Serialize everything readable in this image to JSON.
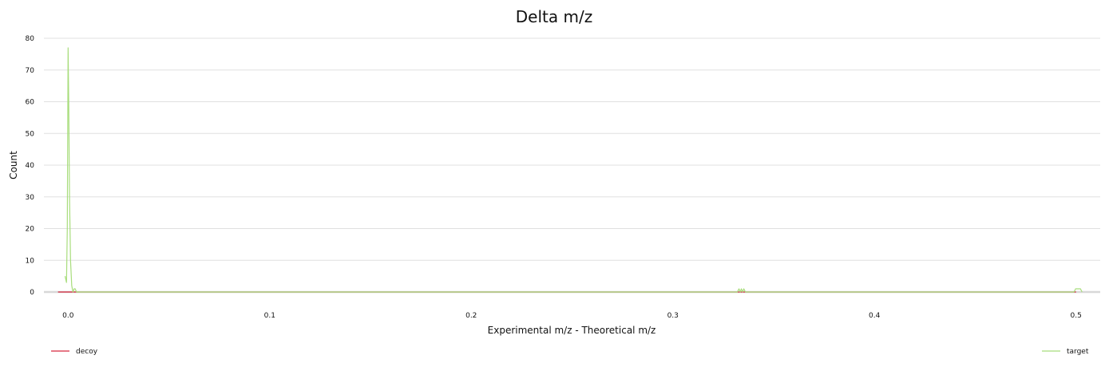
{
  "chart_data": {
    "type": "line",
    "title": "Delta m/z",
    "xlabel": "Experimental m/z - Theoretical m/z",
    "ylabel": "Count",
    "xlim": [
      -0.012,
      0.512
    ],
    "ylim": [
      0,
      80
    ],
    "x_ticks": [
      0.0,
      0.1,
      0.2,
      0.3,
      0.4,
      0.5
    ],
    "x_tick_labels": [
      "0.0",
      "0.1",
      "0.2",
      "0.3",
      "0.4",
      "0.5"
    ],
    "y_ticks": [
      0,
      10,
      20,
      30,
      40,
      50,
      60,
      70,
      80
    ],
    "y_tick_labels": [
      "0",
      "10",
      "20",
      "30",
      "40",
      "50",
      "60",
      "70",
      "80"
    ],
    "grid": "horizontal",
    "legend": [
      {
        "name": "decoy",
        "color": "#d6273d",
        "position": "bottom-left"
      },
      {
        "name": "target",
        "color": "#a8dd7c",
        "position": "bottom-right"
      }
    ],
    "series": [
      {
        "name": "decoy",
        "color": "#d6273d",
        "x": [
          -0.005,
          0.0,
          0.005,
          0.1,
          0.2,
          0.3,
          0.4,
          0.5
        ],
        "y": [
          0,
          0,
          0,
          0,
          0,
          0,
          0,
          0
        ]
      },
      {
        "name": "target",
        "color": "#a8dd7c",
        "x": [
          -0.0015,
          -0.0008,
          -0.0004,
          0.0,
          0.0003,
          0.0007,
          0.0012,
          0.0018,
          0.0024,
          0.003,
          0.0035,
          0.0042,
          0.005,
          0.332,
          0.3328,
          0.3334,
          0.334,
          0.3346,
          0.3352,
          0.336,
          0.499,
          0.4998,
          0.5005,
          0.501,
          0.5015,
          0.5022,
          0.503
        ],
        "y": [
          5,
          3,
          20,
          77,
          60,
          30,
          10,
          2,
          0,
          1,
          1,
          0,
          0,
          0,
          1,
          0,
          1,
          0,
          1,
          0,
          0,
          1,
          1,
          1,
          1,
          1,
          0
        ]
      }
    ]
  }
}
